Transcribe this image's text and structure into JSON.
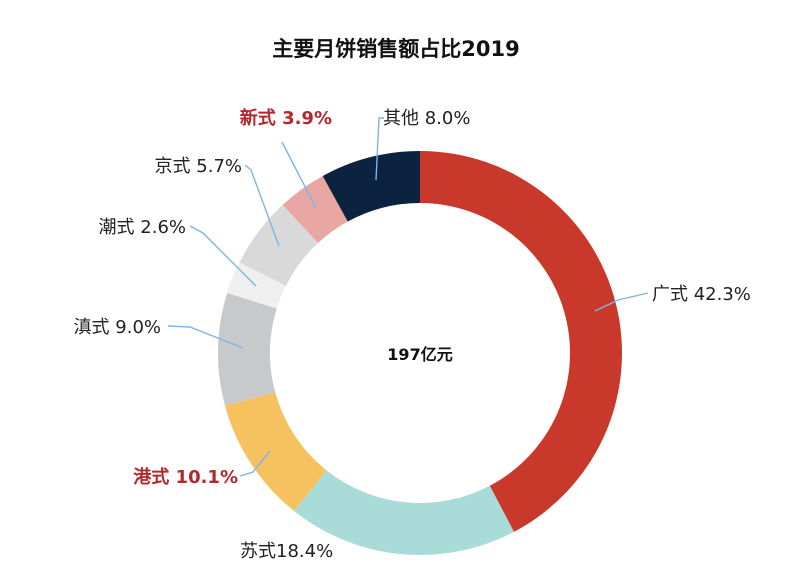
{
  "chart_data": {
    "type": "pie",
    "title": "主要月饼销售额占比2019",
    "center_label": "197亿元",
    "slices": [
      {
        "name": "广式",
        "value": 42.3,
        "label": "广式 42.3%",
        "color": "#c9392b",
        "highlight": false
      },
      {
        "name": "苏式",
        "value": 18.4,
        "label": "苏式18.4%",
        "color": "#a9dbd8",
        "highlight": false
      },
      {
        "name": "港式",
        "value": 10.1,
        "label": "港式 10.1%",
        "color": "#f6c260",
        "highlight": true
      },
      {
        "name": "滇式",
        "value": 9.0,
        "label": "滇式 9.0%",
        "color": "#c8c9cb",
        "highlight": false
      },
      {
        "name": "潮式",
        "value": 2.6,
        "label": "潮式 2.6%",
        "color": "#efefef",
        "highlight": false
      },
      {
        "name": "京式",
        "value": 5.7,
        "label": "京式 5.7%",
        "color": "#d9d9da",
        "highlight": false
      },
      {
        "name": "新式",
        "value": 3.9,
        "label": "新式 3.9%",
        "color": "#e8a7a2",
        "highlight": true
      },
      {
        "name": "其他",
        "value": 8.0,
        "label": "其他 8.0%",
        "color": "#0c2340",
        "highlight": false
      }
    ]
  }
}
